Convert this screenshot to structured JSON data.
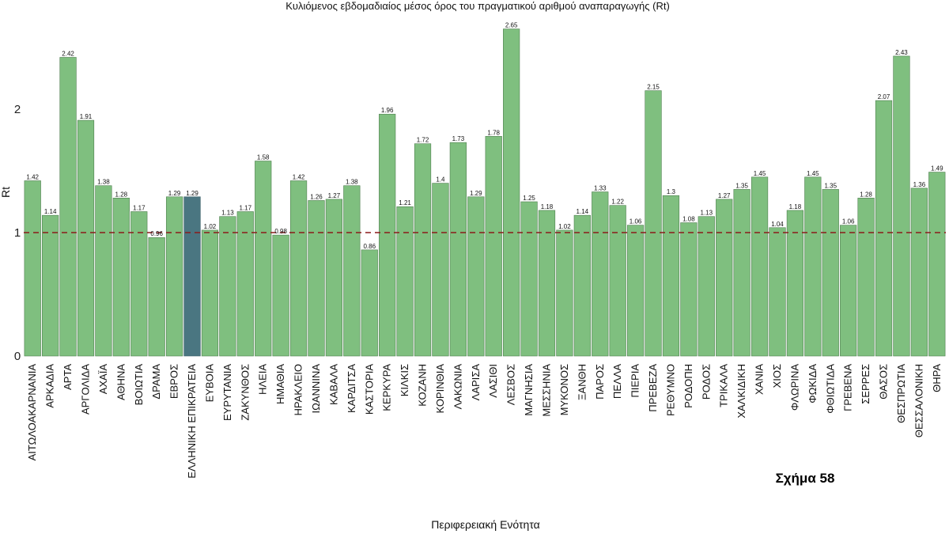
{
  "figure_note": "Σχήμα 58",
  "colors": {
    "bar": "#7fbf7f",
    "bar_stroke": "#4f7f4f",
    "highlight_bar": "#4a7681",
    "reference_line": "#8b1a1a"
  },
  "chart_data": {
    "type": "bar",
    "title": "Κυλιόμενος εβδομαδιαίος μέσος όρος του πραγματικού αριθμού αναπαραγωγής (Rt)",
    "xlabel": "Περιφερειακή Ενότητα",
    "ylabel": "Rt",
    "ylim": [
      0,
      2.68
    ],
    "yticks": [
      0,
      1,
      2
    ],
    "reference_line": 1,
    "reference_style": "dashed",
    "highlight_category": "ΕΛΛΗΝΙΚΗ ΕΠΙΚΡΑΤΕΙΑ",
    "grid": false,
    "categories": [
      "ΑΙΤΩΛΟΑΚΑΡΝΑΝΙΑ",
      "ΑΡΚΑΔΙΑ",
      "ΑΡΤΑ",
      "ΑΡΓΟΛΙΔΑ",
      "ΑΧΑΪΑ",
      "ΑΘΗΝΑ",
      "ΒΟΙΩΤΙΑ",
      "ΔΡΑΜΑ",
      "ΕΒΡΟΣ",
      "ΕΛΛΗΝΙΚΗ ΕΠΙΚΡΑΤΕΙΑ",
      "ΕΥΒΟΙΑ",
      "ΕΥΡΥΤΑΝΙΑ",
      "ΖΑΚΥΝΘΟΣ",
      "ΗΛΕΙΑ",
      "ΗΜΑΘΙΑ",
      "ΗΡΑΚΛΕΙΟ",
      "ΙΩΑΝΝΙΝΑ",
      "ΚΑΒΑΛΑ",
      "ΚΑΡΔΙΤΣΑ",
      "ΚΑΣΤΟΡΙΑ",
      "ΚΕΡΚΥΡΑ",
      "ΚΙΛΚΙΣ",
      "ΚΟΖΑΝΗ",
      "ΚΟΡΙΝΘΙΑ",
      "ΛΑΚΩΝΙΑ",
      "ΛΑΡΙΣΑ",
      "ΛΑΣΙΘΙ",
      "ΛΕΣΒΟΣ",
      "ΜΑΓΝΗΣΙΑ",
      "ΜΕΣΣΗΝΙΑ",
      "ΜΥΚΟΝΟΣ",
      "ΞΑΝΘΗ",
      "ΠΑΡΟΣ",
      "ΠΕΛΛΑ",
      "ΠΙΕΡΙΑ",
      "ΠΡΕΒΕΖΑ",
      "ΡΕΘΥΜΝΟ",
      "ΡΟΔΟΠΗ",
      "ΡΟΔΟΣ",
      "ΤΡΙΚΑΛΑ",
      "ΧΑΛΚΙΔΙΚΗ",
      "ΧΑΝΙΑ",
      "ΧΙΟΣ",
      "ΦΛΩΡΙΝΑ",
      "ΦΩΚΙΔΑ",
      "ΦΘΙΩΤΙΔΑ",
      "ΓΡΕΒΕΝΑ",
      "ΣΕΡΡΕΣ",
      "ΘΑΣΟΣ",
      "ΘΕΣΠΡΩΤΙΑ",
      "ΘΕΣΣΑΛΟΝΙΚΗ",
      "ΘΗΡΑ"
    ],
    "values": [
      1.42,
      1.14,
      2.42,
      1.91,
      1.38,
      1.28,
      1.17,
      0.96,
      1.29,
      1.29,
      1.02,
      1.13,
      1.17,
      1.58,
      0.98,
      1.42,
      1.26,
      1.27,
      1.38,
      0.86,
      1.96,
      1.21,
      1.72,
      1.4,
      1.73,
      1.29,
      1.78,
      2.65,
      1.25,
      1.18,
      1.02,
      1.14,
      1.33,
      1.22,
      1.06,
      2.15,
      1.3,
      1.08,
      1.13,
      1.27,
      1.35,
      1.45,
      1.04,
      1.18,
      1.45,
      1.35,
      1.06,
      1.28,
      2.07,
      2.43,
      1.36,
      1.49
    ],
    "value_labels": [
      "1.42",
      "1.14",
      "2.42",
      "1.91",
      "1.38",
      "1.28",
      "1.17",
      "0.96",
      "1.29",
      "1.29",
      "1.02",
      "1.13",
      "1.17",
      "1.58",
      "0.98",
      "1.42",
      "1.26",
      "1.27",
      "1.38",
      "0.86",
      "1.96",
      "1.21",
      "1.72",
      "1.4",
      "1.73",
      "1.29",
      "1.78",
      "2.65",
      "1.25",
      "1.18",
      "1.02",
      "1.14",
      "1.33",
      "1.22",
      "1.06",
      "2.15",
      "1.3",
      "1.08",
      "1.13",
      "1.27",
      "1.35",
      "1.45",
      "1.04",
      "1.18",
      "1.45",
      "1.35",
      "1.06",
      "1.28",
      "2.07",
      "2.43",
      "1.36",
      "1.49"
    ]
  }
}
